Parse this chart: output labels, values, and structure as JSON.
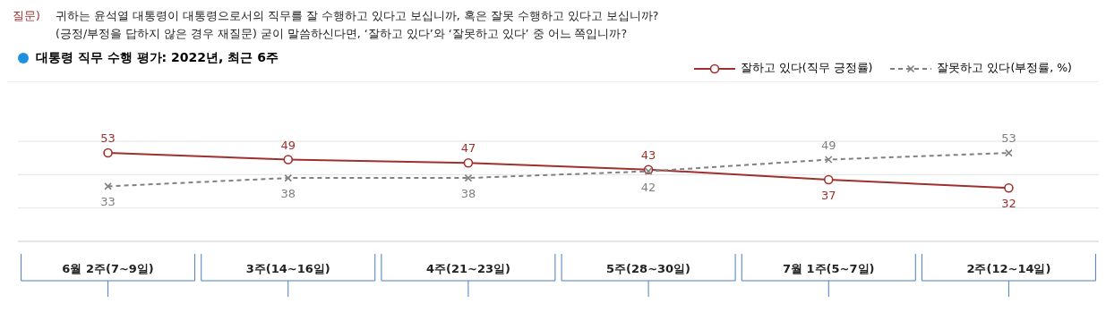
{
  "chart_data": {
    "type": "line",
    "title": "대통령 직무 수행 평가: 2022년, 최근 6주",
    "annotations": [
      "질문)",
      "귀하는 윤석열 대통령이 대통령으로서의 직무를 잘 수행하고 있다고 보십니까, 혹은 잘못 수행하고 있다고 보십니까?",
      "(긍정/부정을 답하지 않은 경우 재질문) 굳이 말씀하신다면, ‘잘하고 있다’와 ‘잘못하고 있다’ 중 어느 쪽입니까?"
    ],
    "categories": [
      "6월 2주(7~9일)",
      "3주(14~16일)",
      "4주(21~23일)",
      "5주(28~30일)",
      "7월 1주(5~7일)",
      "2주(12~14일)"
    ],
    "series": [
      {
        "name": "잘하고 있다(직무 긍정률)",
        "color": "#a0302e",
        "values": [
          53,
          49,
          47,
          43,
          37,
          32
        ],
        "marker": "circle",
        "line_style": "solid"
      },
      {
        "name": "잘못하고 있다(부정률, %)",
        "color": "#808080",
        "values": [
          33,
          38,
          38,
          42,
          49,
          53
        ],
        "marker": "cross",
        "line_style": "dashed"
      }
    ],
    "ref_lines": [
      {
        "axis": "y",
        "value": 20,
        "color": "#e4e4e4"
      },
      {
        "axis": "y",
        "value": 40,
        "color": "#e4e4e4"
      },
      {
        "axis": "y",
        "value": 60,
        "color": "#e4e4e4"
      }
    ],
    "tick_labels": "x",
    "data_labels": true,
    "legend": "top right"
  }
}
